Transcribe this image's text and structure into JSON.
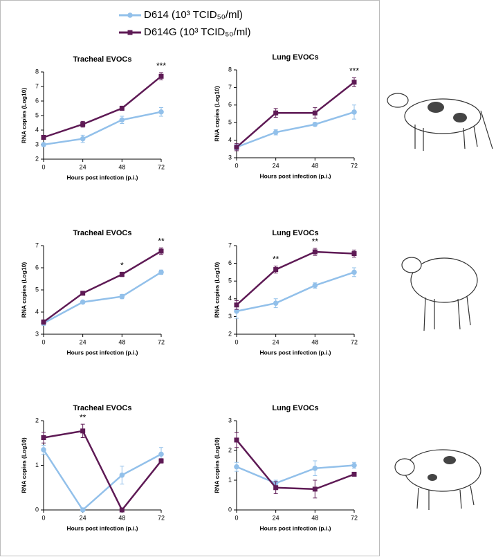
{
  "legend": [
    {
      "name": "D614 (10³ TCID₅₀/ml)",
      "color": "#92c0ea",
      "marker": "circle"
    },
    {
      "name": "D614G (10³ TCID₅₀/ml)",
      "color": "#5e1a55",
      "marker": "square"
    }
  ],
  "chart_data": [
    {
      "type": "line",
      "title": "Tracheal EVOCs",
      "xlabel": "Hours post infection (p.i.)",
      "ylabel": "RNA copies (Log10)",
      "x": [
        0,
        24,
        48,
        72
      ],
      "xlim": [
        0,
        72
      ],
      "xticks": [
        0,
        24,
        48,
        72
      ],
      "ylim": [
        2,
        8
      ],
      "yticks": [
        2,
        3,
        4,
        5,
        6,
        7,
        8
      ],
      "series": [
        {
          "values": [
            3.0,
            3.4,
            4.7,
            5.25
          ],
          "errors": [
            0.1,
            0.25,
            0.25,
            0.3
          ]
        },
        {
          "values": [
            3.5,
            4.4,
            5.5,
            7.7
          ],
          "errors": [
            0.1,
            0.2,
            0.15,
            0.25
          ]
        }
      ],
      "annotations": [
        {
          "x": 72,
          "text": "***"
        }
      ]
    },
    {
      "type": "line",
      "title": "Lung EVOCs",
      "xlabel": "Hours post infection (p.i.)",
      "ylabel": "RNA copies (Log10)",
      "x": [
        0,
        24,
        48,
        72
      ],
      "xlim": [
        0,
        72
      ],
      "xticks": [
        0,
        24,
        48,
        72
      ],
      "ylim": [
        3,
        8
      ],
      "yticks": [
        3,
        4,
        5,
        6,
        7,
        8
      ],
      "series": [
        {
          "values": [
            3.6,
            4.45,
            4.9,
            5.6
          ],
          "errors": [
            0.15,
            0.15,
            0.1,
            0.4
          ]
        },
        {
          "values": [
            3.6,
            5.55,
            5.55,
            7.3
          ],
          "errors": [
            0.2,
            0.25,
            0.3,
            0.25
          ]
        }
      ],
      "annotations": [
        {
          "x": 72,
          "text": "***"
        }
      ]
    },
    {
      "type": "line",
      "title": "Tracheal EVOCs",
      "xlabel": "Hours post infection (p.i.)",
      "ylabel": "RNA copies (Log10)",
      "x": [
        0,
        24,
        48,
        72
      ],
      "xlim": [
        0,
        72
      ],
      "xticks": [
        0,
        24,
        48,
        72
      ],
      "ylim": [
        3,
        7
      ],
      "yticks": [
        3,
        4,
        5,
        6,
        7
      ],
      "series": [
        {
          "values": [
            3.5,
            4.45,
            4.7,
            5.8
          ],
          "errors": [
            0.1,
            0.05,
            0.1,
            0.1
          ]
        },
        {
          "values": [
            3.55,
            4.85,
            5.7,
            6.75
          ],
          "errors": [
            0.1,
            0.05,
            0.1,
            0.15
          ]
        }
      ],
      "annotations": [
        {
          "x": 48,
          "text": "*"
        },
        {
          "x": 72,
          "text": "**"
        }
      ]
    },
    {
      "type": "line",
      "title": "Lung EVOCs",
      "xlabel": "Hours post infection (p.i.)",
      "ylabel": "RNA copies (Log10)",
      "x": [
        0,
        24,
        48,
        72
      ],
      "xlim": [
        0,
        72
      ],
      "xticks": [
        0,
        24,
        48,
        72
      ],
      "ylim": [
        2,
        7
      ],
      "yticks": [
        2,
        3,
        4,
        5,
        6,
        7
      ],
      "series": [
        {
          "values": [
            3.3,
            3.75,
            4.75,
            5.5
          ],
          "errors": [
            0.4,
            0.25,
            0.15,
            0.25
          ]
        },
        {
          "values": [
            3.65,
            5.65,
            6.65,
            6.55
          ],
          "errors": [
            0.25,
            0.2,
            0.2,
            0.2
          ]
        }
      ],
      "annotations": [
        {
          "x": 24,
          "text": "**"
        },
        {
          "x": 48,
          "text": "**"
        }
      ]
    },
    {
      "type": "line",
      "title": "Tracheal EVOCs",
      "xlabel": "Hours post infection (p.i.)",
      "ylabel": "RNA copies (Log10)",
      "x": [
        0,
        24,
        48,
        72
      ],
      "xlim": [
        0,
        72
      ],
      "xticks": [
        0,
        24,
        48,
        72
      ],
      "ylim": [
        0,
        2
      ],
      "yticks": [
        0,
        1,
        2
      ],
      "series": [
        {
          "values": [
            1.35,
            0,
            0.78,
            1.25
          ],
          "errors": [
            0.1,
            0,
            0.2,
            0.15
          ]
        },
        {
          "values": [
            1.62,
            1.77,
            0,
            1.1
          ],
          "errors": [
            0.12,
            0.15,
            0,
            0.05
          ]
        }
      ],
      "annotations": [
        {
          "x": 24,
          "text": "**"
        }
      ]
    },
    {
      "type": "line",
      "title": "Lung EVOCs",
      "xlabel": "Hours post infection (p.i.)",
      "ylabel": "RNA copies (Log10)",
      "x": [
        0,
        24,
        48,
        72
      ],
      "xlim": [
        0,
        72
      ],
      "xticks": [
        0,
        24,
        48,
        72
      ],
      "ylim": [
        0,
        3
      ],
      "yticks": [
        0,
        1,
        2,
        3
      ],
      "series": [
        {
          "values": [
            1.45,
            0.9,
            1.4,
            1.5
          ],
          "errors": [
            0.15,
            0.1,
            0.25,
            0.1
          ]
        },
        {
          "values": [
            2.35,
            0.75,
            0.7,
            1.2
          ],
          "errors": [
            0.25,
            0.2,
            0.3,
            0.05
          ]
        }
      ],
      "annotations": []
    }
  ]
}
